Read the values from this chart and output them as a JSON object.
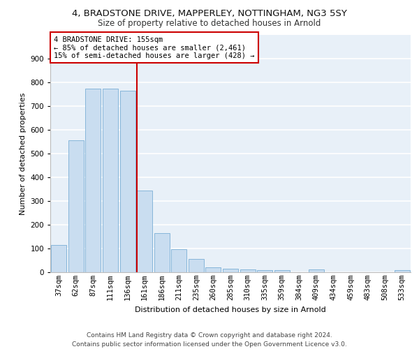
{
  "title": "4, BRADSTONE DRIVE, MAPPERLEY, NOTTINGHAM, NG3 5SY",
  "subtitle": "Size of property relative to detached houses in Arnold",
  "xlabel": "Distribution of detached houses by size in Arnold",
  "ylabel": "Number of detached properties",
  "categories": [
    "37sqm",
    "62sqm",
    "87sqm",
    "111sqm",
    "136sqm",
    "161sqm",
    "186sqm",
    "211sqm",
    "235sqm",
    "260sqm",
    "285sqm",
    "310sqm",
    "335sqm",
    "359sqm",
    "384sqm",
    "409sqm",
    "434sqm",
    "459sqm",
    "483sqm",
    "508sqm",
    "533sqm"
  ],
  "values": [
    115,
    555,
    775,
    775,
    765,
    345,
    165,
    98,
    55,
    22,
    15,
    13,
    10,
    8,
    0,
    12,
    0,
    0,
    0,
    0,
    10
  ],
  "bar_color": "#c9ddf0",
  "bar_edge_color": "#7aaed6",
  "background_color": "#e8f0f8",
  "grid_color": "#ffffff",
  "vline_color": "#cc0000",
  "annotation_text": "4 BRADSTONE DRIVE: 155sqm\n← 85% of detached houses are smaller (2,461)\n15% of semi-detached houses are larger (428) →",
  "annotation_box_facecolor": "#ffffff",
  "annotation_box_edgecolor": "#cc0000",
  "ylim": [
    0,
    1000
  ],
  "yticks": [
    0,
    100,
    200,
    300,
    400,
    500,
    600,
    700,
    800,
    900
  ],
  "footer_line1": "Contains HM Land Registry data © Crown copyright and database right 2024.",
  "footer_line2": "Contains public sector information licensed under the Open Government Licence v3.0.",
  "title_fontsize": 9.5,
  "subtitle_fontsize": 8.5,
  "axis_label_fontsize": 8,
  "tick_fontsize": 7.5,
  "annotation_fontsize": 7.5,
  "footer_fontsize": 6.5
}
